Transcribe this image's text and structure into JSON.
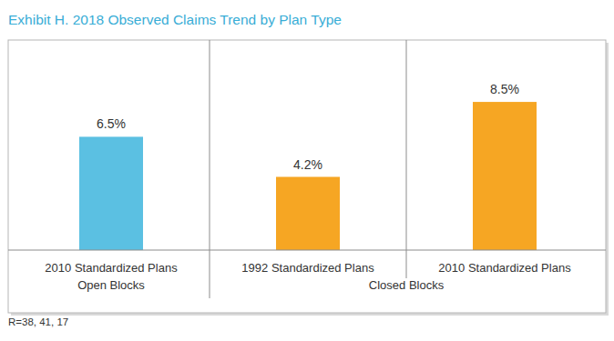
{
  "chart_data": {
    "type": "bar",
    "title": "Exhibit H. 2018 Observed Claims Trend by Plan Type",
    "categories": [
      "2010 Standardized Plans",
      "1992 Standardized Plans",
      "2010 Standardized Plans"
    ],
    "groups": [
      {
        "name": "Open Blocks",
        "size": 1
      },
      {
        "name": "Closed Blocks",
        "size": 2
      }
    ],
    "values": [
      6.5,
      4.2,
      8.5
    ],
    "value_labels": [
      "6.5%",
      "4.2%",
      "8.5%"
    ],
    "colors": [
      "#5bc0e2",
      "#f6a623",
      "#f6a623"
    ],
    "ylim": [
      0,
      12
    ],
    "data_labels": true,
    "tick_labels": "x",
    "grid": false,
    "footnote": "R=38, 41, 17"
  }
}
